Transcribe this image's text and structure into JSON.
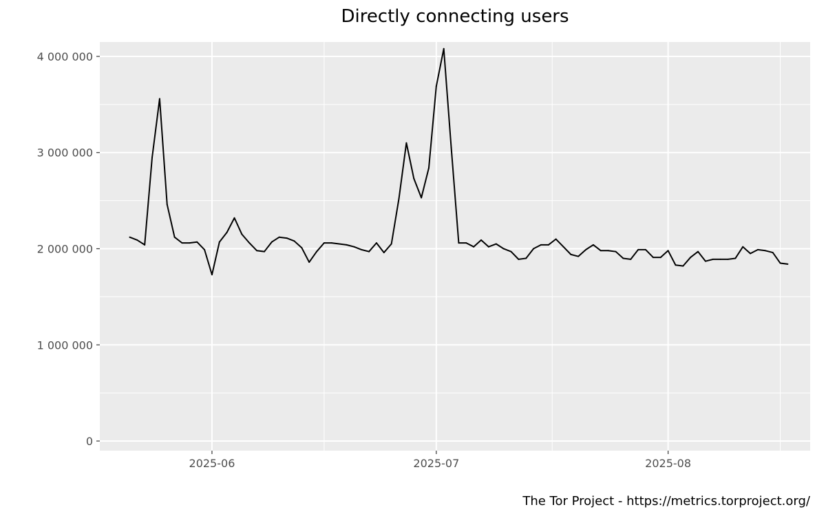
{
  "chart_data": {
    "type": "line",
    "title": "Directly connecting users",
    "xlabel": "",
    "ylabel": "",
    "caption": "The Tor Project - https://metrics.torproject.org/",
    "x_range": [
      "2025-05-17",
      "2025-08-20"
    ],
    "ylim": [
      -100000,
      4150000
    ],
    "y_ticks": [
      {
        "value": 0,
        "label": "0"
      },
      {
        "value": 1000000,
        "label": "1 000 000"
      },
      {
        "value": 2000000,
        "label": "2 000 000"
      },
      {
        "value": 3000000,
        "label": "3 000 000"
      },
      {
        "value": 4000000,
        "label": "4 000 000"
      }
    ],
    "x_ticks": [
      {
        "value": "2025-06-01",
        "label": "2025-06"
      },
      {
        "value": "2025-07-01",
        "label": "2025-07"
      },
      {
        "value": "2025-08-01",
        "label": "2025-08"
      }
    ],
    "grid": true,
    "legend": "none",
    "line_color": "#000000",
    "panel_color": "#ebebeb",
    "grid_color": "#ffffff",
    "series": [
      {
        "x": [
          "2025-05-21",
          "2025-05-22",
          "2025-05-23",
          "2025-05-24",
          "2025-05-25",
          "2025-05-26",
          "2025-05-27",
          "2025-05-28",
          "2025-05-29",
          "2025-05-30",
          "2025-05-31",
          "2025-06-01",
          "2025-06-02",
          "2025-06-03",
          "2025-06-04",
          "2025-06-05",
          "2025-06-06",
          "2025-06-07",
          "2025-06-08",
          "2025-06-09",
          "2025-06-10",
          "2025-06-11",
          "2025-06-12",
          "2025-06-13",
          "2025-06-14",
          "2025-06-15",
          "2025-06-16",
          "2025-06-17",
          "2025-06-18",
          "2025-06-19",
          "2025-06-20",
          "2025-06-21",
          "2025-06-22",
          "2025-06-23",
          "2025-06-24",
          "2025-06-25",
          "2025-06-26",
          "2025-06-27",
          "2025-06-28",
          "2025-06-29",
          "2025-06-30",
          "2025-07-01",
          "2025-07-02",
          "2025-07-03",
          "2025-07-04",
          "2025-07-05",
          "2025-07-06",
          "2025-07-07",
          "2025-07-08",
          "2025-07-09",
          "2025-07-10",
          "2025-07-11",
          "2025-07-12",
          "2025-07-13",
          "2025-07-14",
          "2025-07-15",
          "2025-07-16",
          "2025-07-17",
          "2025-07-18",
          "2025-07-19",
          "2025-07-20",
          "2025-07-21",
          "2025-07-22",
          "2025-07-23",
          "2025-07-24",
          "2025-07-25",
          "2025-07-26",
          "2025-07-27",
          "2025-07-28",
          "2025-07-29",
          "2025-07-30",
          "2025-07-31",
          "2025-08-01",
          "2025-08-02",
          "2025-08-03",
          "2025-08-04",
          "2025-08-05",
          "2025-08-06",
          "2025-08-07",
          "2025-08-08",
          "2025-08-09",
          "2025-08-10",
          "2025-08-11",
          "2025-08-12",
          "2025-08-13",
          "2025-08-14",
          "2025-08-15",
          "2025-08-16",
          "2025-08-17"
        ],
        "values": [
          2120000,
          2090000,
          2040000,
          2950000,
          3560000,
          2460000,
          2120000,
          2060000,
          2060000,
          2070000,
          1990000,
          1730000,
          2070000,
          2170000,
          2320000,
          2150000,
          2060000,
          1980000,
          1970000,
          2070000,
          2120000,
          2110000,
          2080000,
          2010000,
          1860000,
          1970000,
          2060000,
          2060000,
          2050000,
          2040000,
          2020000,
          1990000,
          1970000,
          2060000,
          1960000,
          2050000,
          2520000,
          3100000,
          2730000,
          2530000,
          2840000,
          3690000,
          4080000,
          3050000,
          2060000,
          2060000,
          2020000,
          2090000,
          2020000,
          2050000,
          2000000,
          1970000,
          1890000,
          1900000,
          2000000,
          2040000,
          2040000,
          2100000,
          2020000,
          1940000,
          1920000,
          1990000,
          2040000,
          1980000,
          1980000,
          1970000,
          1900000,
          1890000,
          1990000,
          1990000,
          1910000,
          1910000,
          1980000,
          1830000,
          1820000,
          1910000,
          1970000,
          1870000,
          1890000,
          1890000,
          1890000,
          1900000,
          2020000,
          1950000,
          1990000,
          1980000,
          1960000,
          1850000,
          1840000
        ]
      }
    ]
  }
}
